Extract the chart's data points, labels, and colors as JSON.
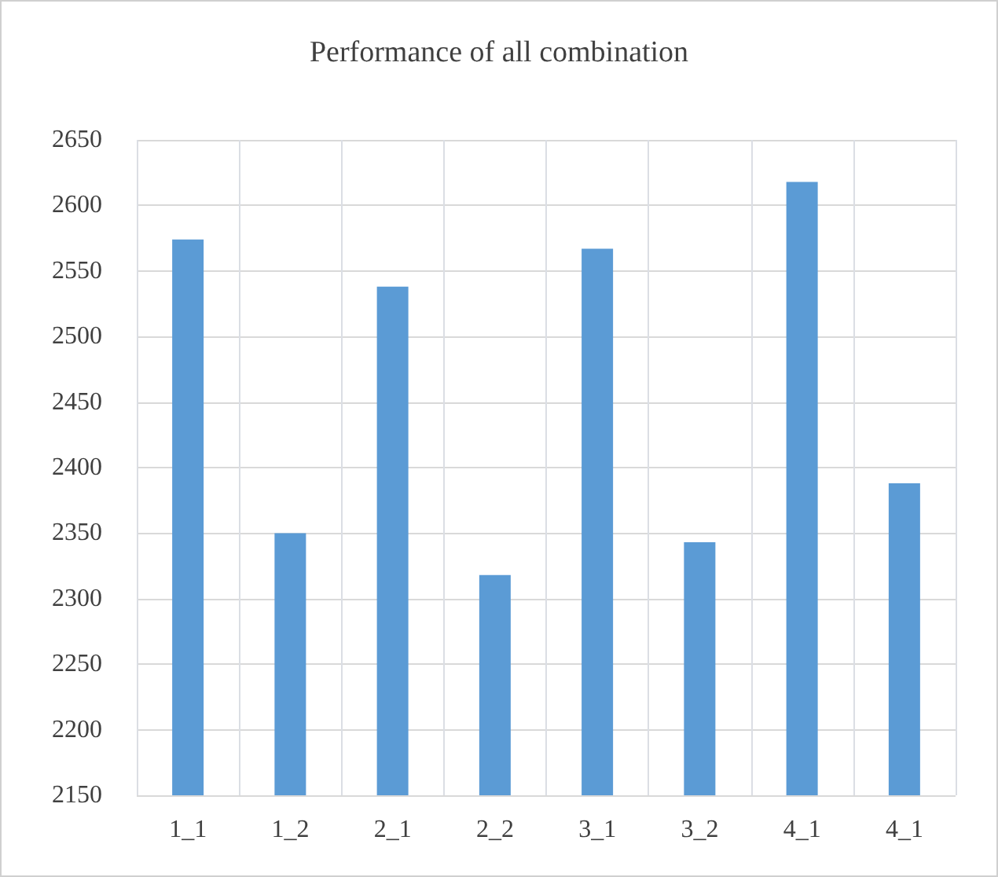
{
  "chart_data": {
    "type": "bar",
    "title": "Performance of all combination",
    "categories": [
      "1_1",
      "1_2",
      "2_1",
      "2_2",
      "3_1",
      "3_2",
      "4_1",
      "4_1"
    ],
    "values": [
      2574,
      2350,
      2538,
      2318,
      2567,
      2343,
      2618,
      2388
    ],
    "color": "#5b9bd5",
    "ylim": [
      2150,
      2650
    ],
    "yticks": [
      2150,
      2200,
      2250,
      2300,
      2350,
      2400,
      2450,
      2500,
      2550,
      2600,
      2650
    ],
    "grid": true
  }
}
